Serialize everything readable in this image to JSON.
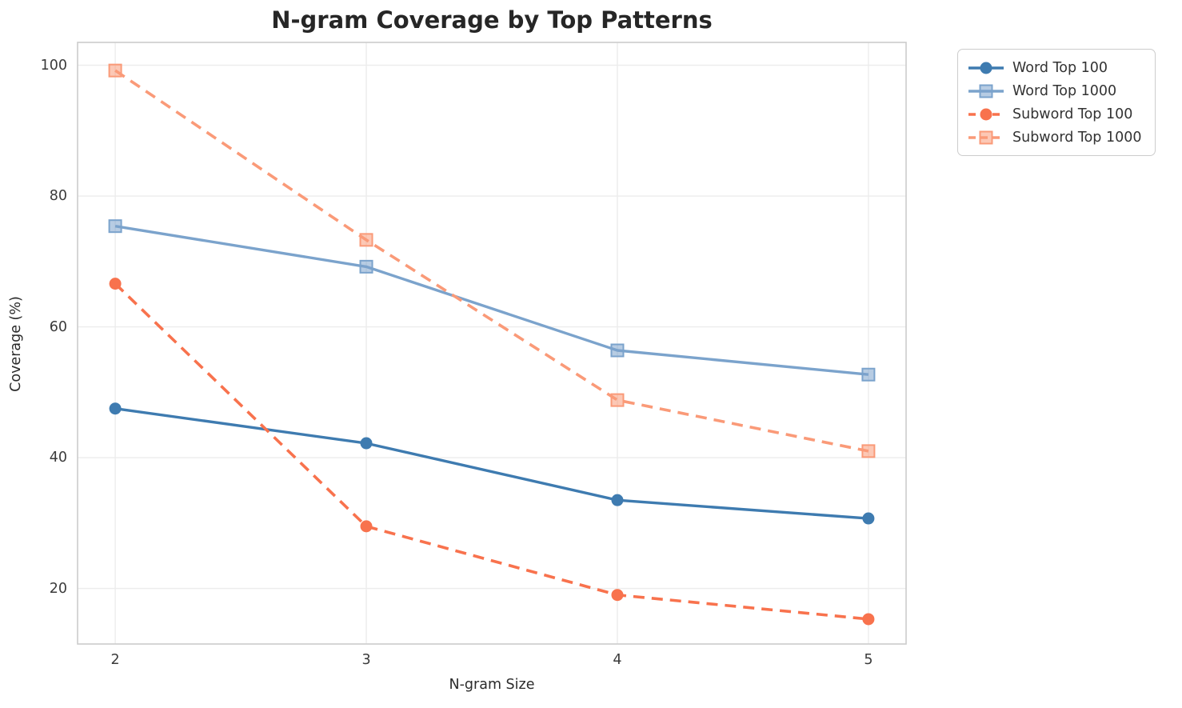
{
  "chart_data": {
    "type": "line",
    "title": "N-gram Coverage by Top Patterns",
    "xlabel": "N-gram Size",
    "ylabel": "Coverage (%)",
    "x": [
      2,
      3,
      4,
      5
    ],
    "xtick_labels": [
      "2",
      "3",
      "4",
      "5"
    ],
    "yticks": [
      20,
      40,
      60,
      80,
      100
    ],
    "ytick_labels": [
      "20",
      "40",
      "60",
      "80",
      "100"
    ],
    "xlim": [
      1.85,
      5.15
    ],
    "ylim": [
      11.5,
      103.5
    ],
    "grid": true,
    "legend_position": "outside-top-right",
    "series": [
      {
        "name": "Word Top 100",
        "values": [
          47.5,
          42.2,
          33.5,
          30.7
        ],
        "color": "#3e7bb0",
        "marker": "circle",
        "line_style": "solid"
      },
      {
        "name": "Word Top 1000",
        "values": [
          75.4,
          69.2,
          56.4,
          52.7
        ],
        "color": "#7ba3cc",
        "marker": "square",
        "line_style": "solid"
      },
      {
        "name": "Subword Top 100",
        "values": [
          66.6,
          29.5,
          19.0,
          15.3
        ],
        "color": "#f8724d",
        "marker": "circle",
        "line_style": "dashed"
      },
      {
        "name": "Subword Top 1000",
        "values": [
          99.2,
          73.3,
          48.8,
          41.0
        ],
        "color": "#fa9a78",
        "marker": "square",
        "line_style": "dashed"
      }
    ],
    "colors": {
      "grid": "#ececec",
      "spine": "#cccccc",
      "title_text": "#262626",
      "tick_text": "#3b3b3b",
      "label_text": "#2b2b2b",
      "legend_text": "#333333"
    }
  }
}
